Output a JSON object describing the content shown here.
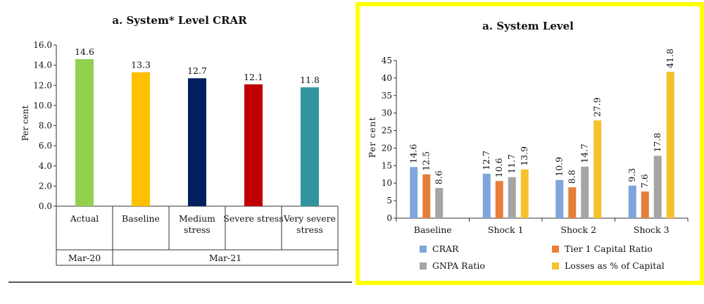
{
  "chart_data": [
    {
      "type": "bar",
      "title": "a. System* Level CRAR",
      "ylabel": "Per cent",
      "ylim": [
        0,
        16
      ],
      "yticks": [
        "0.0",
        "2.0",
        "4.0",
        "6.0",
        "8.0",
        "10.0",
        "12.0",
        "14.0",
        "16.0"
      ],
      "categories": [
        {
          "label": [
            "Actual"
          ],
          "group": "Mar-20"
        },
        {
          "label": [
            "Baseline"
          ],
          "group": "Mar-21"
        },
        {
          "label": [
            "Medium",
            "stress"
          ],
          "group": "Mar-21"
        },
        {
          "label": [
            "Severe stress"
          ],
          "group": "Mar-21"
        },
        {
          "label": [
            "Very severe",
            "stress"
          ],
          "group": "Mar-21"
        }
      ],
      "groups": [
        "Mar-20",
        "Mar-21"
      ],
      "values": [
        14.6,
        13.3,
        12.7,
        12.1,
        11.8
      ],
      "value_labels": [
        "14.6",
        "13.3",
        "12.7",
        "12.1",
        "11.8"
      ],
      "colors": [
        "#92d050",
        "#ffc000",
        "#002060",
        "#c00000",
        "#31949e"
      ]
    },
    {
      "type": "bar",
      "title": "a. System Level",
      "ylabel": "Per cent",
      "ylim": [
        0,
        45
      ],
      "yticks": [
        "0",
        "5",
        "10",
        "15",
        "20",
        "25",
        "30",
        "35",
        "40",
        "45"
      ],
      "categories": [
        "Baseline",
        "Shock 1",
        "Shock 2",
        "Shock 3"
      ],
      "series": [
        {
          "name": "CRAR",
          "color": "#7ea6dc",
          "values": [
            14.6,
            12.7,
            10.9,
            9.3
          ],
          "labels": [
            "14.6",
            "12.7",
            "10.9",
            "9.3"
          ]
        },
        {
          "name": "Tier 1  Capital Ratio",
          "color": "#e57f3a",
          "values": [
            12.5,
            10.6,
            8.8,
            7.6
          ],
          "labels": [
            "12.5",
            "10.6",
            "8.8",
            "7.6"
          ]
        },
        {
          "name": "GNPA Ratio",
          "color": "#a5a5a5",
          "values": [
            8.6,
            11.7,
            14.7,
            17.8
          ],
          "labels": [
            "8.6",
            "11.7",
            "14.7",
            "17.8"
          ]
        },
        {
          "name": "Losses as % of Capital",
          "color": "#f6c12e",
          "values": [
            null,
            13.9,
            27.9,
            41.8
          ],
          "labels": [
            null,
            "13.9",
            "27.9",
            "41.8"
          ]
        }
      ],
      "legend_position": "bottom",
      "border_color": "#ffff00"
    }
  ]
}
